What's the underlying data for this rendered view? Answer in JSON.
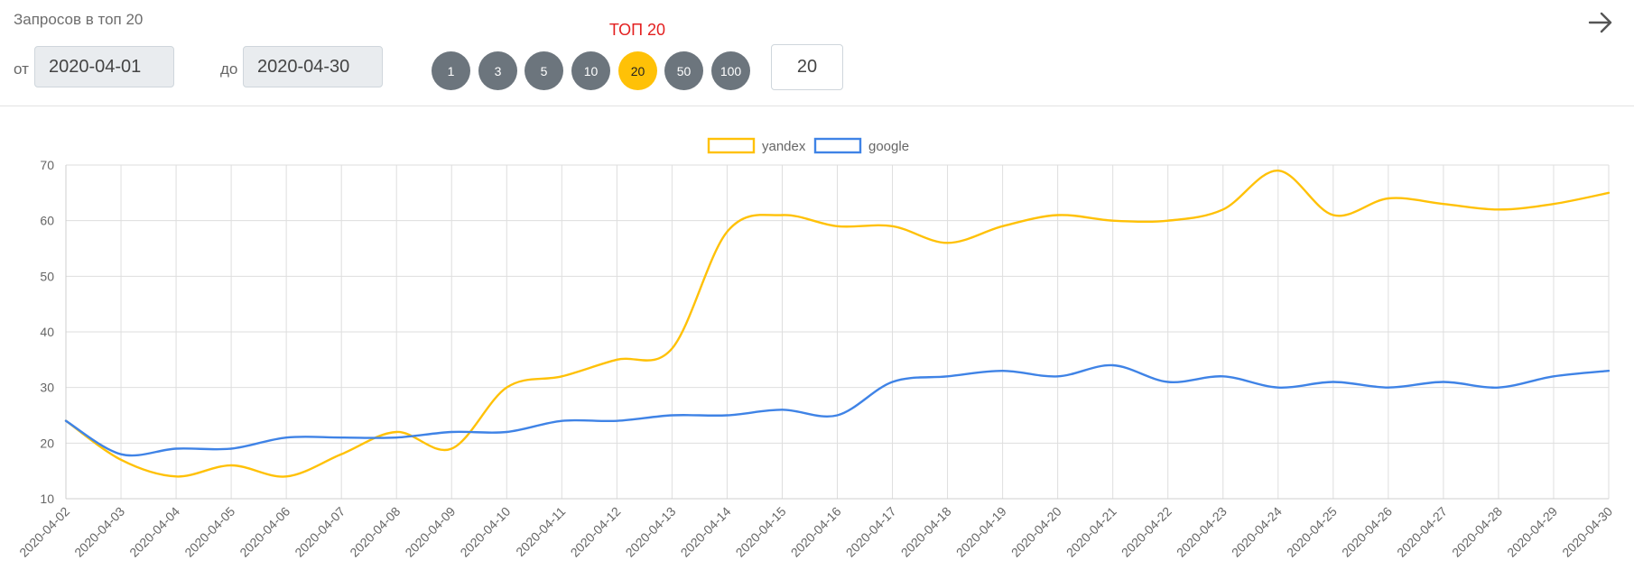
{
  "header": {
    "title": "Запросов в топ 20",
    "from_label": "от",
    "to_label": "до",
    "date_from": "2020-04-01",
    "date_to": "2020-04-30",
    "top_label": "ТОП 20",
    "count_value": "20",
    "pills": [
      "1",
      "3",
      "5",
      "10",
      "20",
      "50",
      "100"
    ],
    "active_pill": "20",
    "arrow_icon": "arrow-right-icon"
  },
  "colors": {
    "yandex": "#ffc107",
    "google": "#3f83e6",
    "pill": "#6c757d",
    "pill_active": "#ffc107",
    "top_label": "#e32020"
  },
  "chart_data": {
    "type": "line",
    "title": "",
    "xlabel": "",
    "ylabel": "",
    "ylim": [
      10,
      70
    ],
    "y_ticks": [
      10,
      20,
      30,
      40,
      50,
      60,
      70
    ],
    "grid": true,
    "legend_position": "top-center",
    "categories": [
      "2020-04-02",
      "2020-04-03",
      "2020-04-04",
      "2020-04-05",
      "2020-04-06",
      "2020-04-07",
      "2020-04-08",
      "2020-04-09",
      "2020-04-10",
      "2020-04-11",
      "2020-04-12",
      "2020-04-13",
      "2020-04-14",
      "2020-04-15",
      "2020-04-16",
      "2020-04-17",
      "2020-04-18",
      "2020-04-19",
      "2020-04-20",
      "2020-04-21",
      "2020-04-22",
      "2020-04-23",
      "2020-04-24",
      "2020-04-25",
      "2020-04-26",
      "2020-04-27",
      "2020-04-28",
      "2020-04-29",
      "2020-04-30"
    ],
    "series": [
      {
        "name": "yandex",
        "color": "#ffc107",
        "values": [
          24,
          17,
          14,
          16,
          14,
          18,
          22,
          19,
          30,
          32,
          35,
          37,
          58,
          61,
          59,
          59,
          56,
          59,
          61,
          60,
          60,
          62,
          69,
          61,
          64,
          63,
          62,
          63,
          65
        ]
      },
      {
        "name": "google",
        "color": "#3f83e6",
        "values": [
          24,
          18,
          19,
          19,
          21,
          21,
          21,
          22,
          22,
          24,
          24,
          25,
          25,
          26,
          25,
          31,
          32,
          33,
          32,
          34,
          31,
          32,
          30,
          31,
          30,
          31,
          30,
          32,
          33
        ]
      }
    ]
  }
}
